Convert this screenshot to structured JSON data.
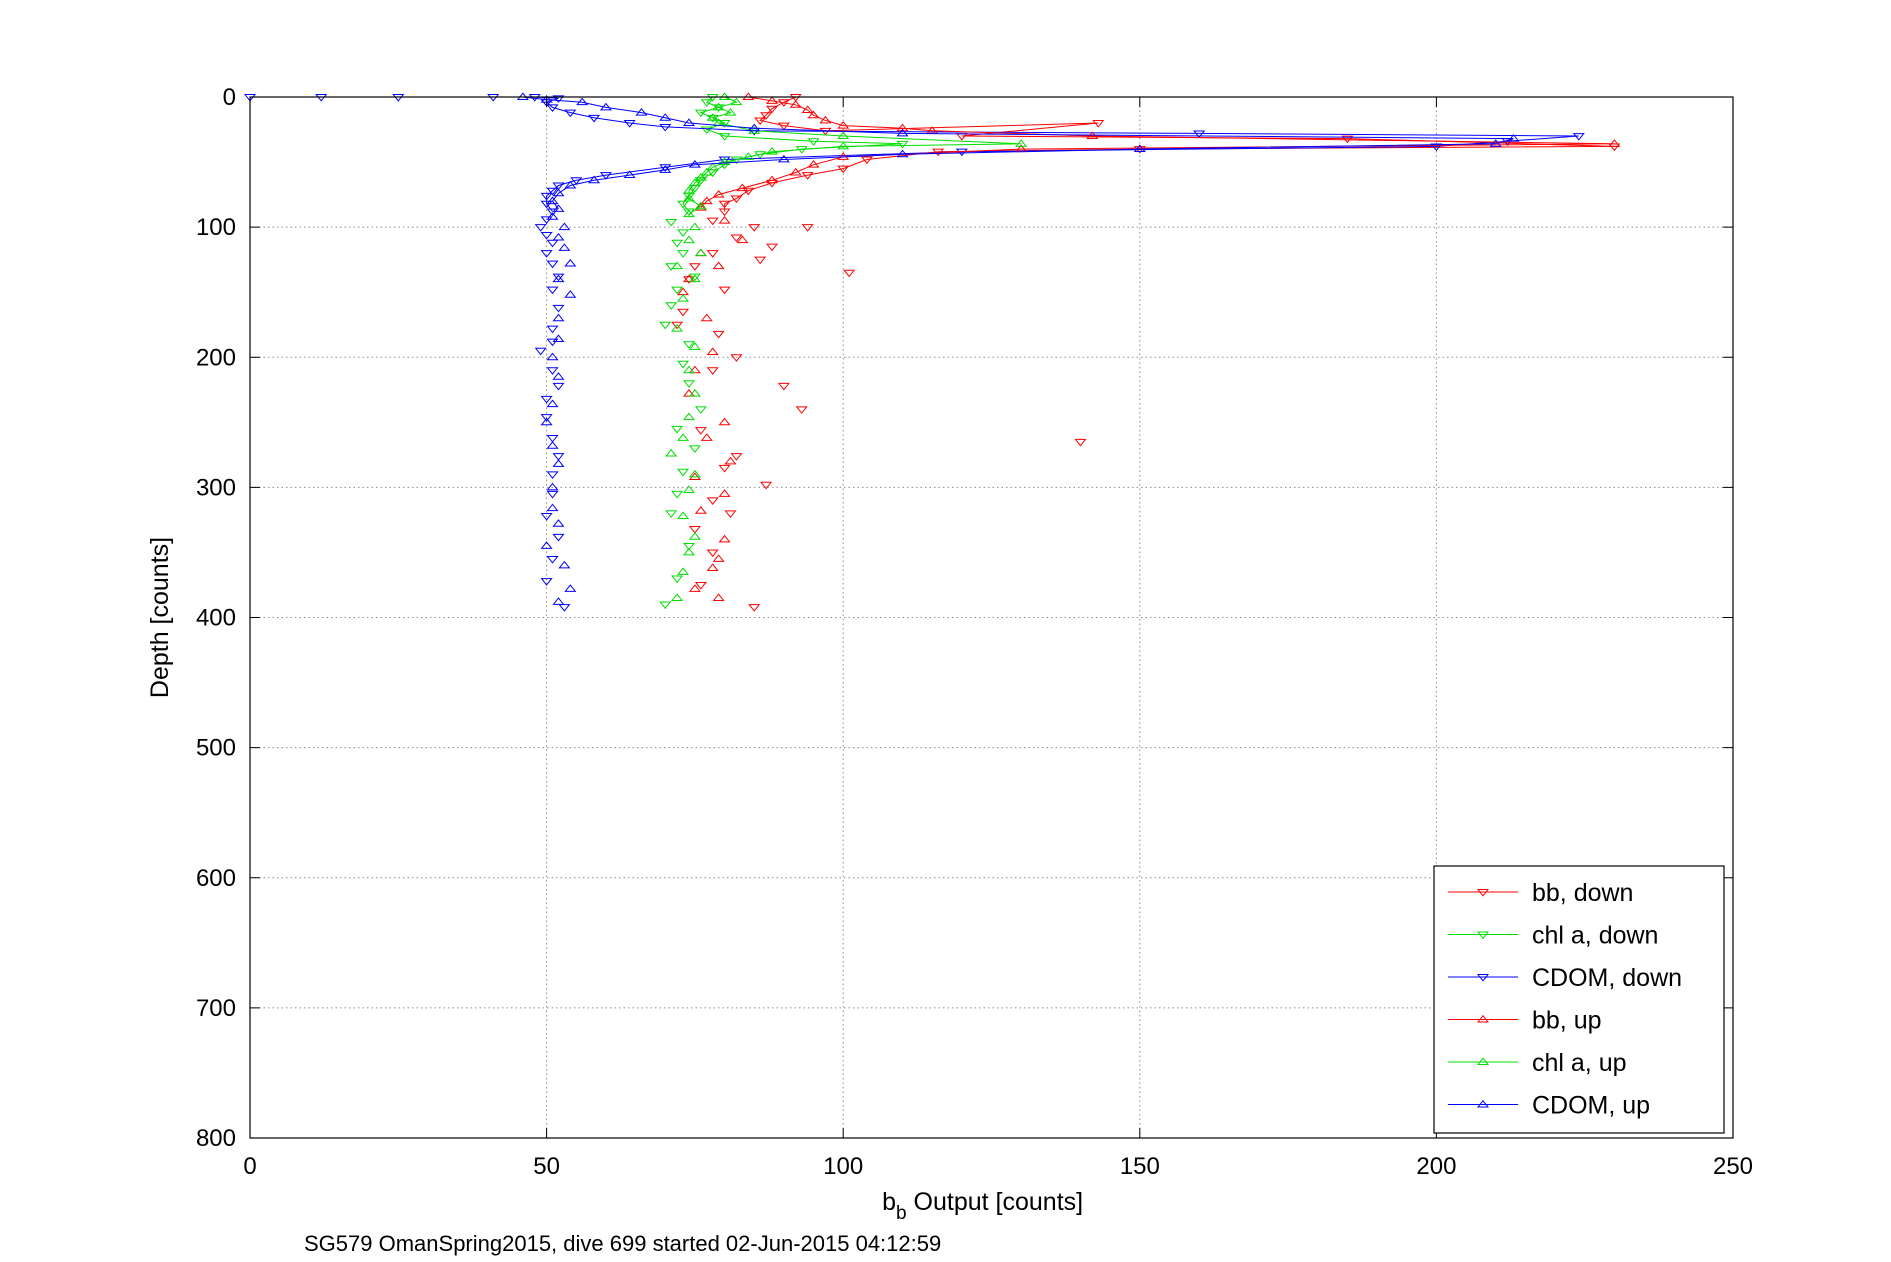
{
  "chart_data": {
    "type": "scatter",
    "title": "",
    "xlabel_main": "b",
    "xlabel_sub": "b",
    "xlabel_rest": " Output [counts]",
    "ylabel": "Depth [counts]",
    "caption": "SG579 OmanSpring2015, dive 699 started 02-Jun-2015 04:12:59",
    "xlim": [
      0,
      250
    ],
    "ylim": [
      0,
      800
    ],
    "y_reversed": true,
    "grid": true,
    "legend_position": "bottom-right",
    "x_ticks": [
      "0",
      "50",
      "100",
      "150",
      "200",
      "250"
    ],
    "y_ticks": [
      "0",
      "100",
      "200",
      "300",
      "400",
      "500",
      "600",
      "700",
      "800"
    ],
    "series": [
      {
        "name": "bb, down",
        "color": "#ff0000",
        "marker": "triangle-down",
        "points": [
          [
            92,
            0
          ],
          [
            90,
            4
          ],
          [
            88,
            9
          ],
          [
            87,
            14
          ],
          [
            86,
            18
          ],
          [
            90,
            22
          ],
          [
            97,
            26
          ],
          [
            143,
            20
          ],
          [
            120,
            30
          ],
          [
            185,
            32
          ],
          [
            230,
            38
          ],
          [
            150,
            40
          ],
          [
            116,
            42
          ],
          [
            104,
            48
          ],
          [
            100,
            55
          ],
          [
            94,
            60
          ],
          [
            88,
            66
          ],
          [
            84,
            72
          ],
          [
            82,
            78
          ],
          [
            80,
            82
          ],
          [
            80,
            88
          ],
          [
            78,
            95
          ],
          [
            85,
            100
          ],
          [
            94,
            100
          ],
          [
            82,
            108
          ],
          [
            88,
            115
          ],
          [
            78,
            120
          ],
          [
            86,
            125
          ],
          [
            75,
            130
          ],
          [
            101,
            135
          ],
          [
            74,
            140
          ],
          [
            80,
            148
          ],
          [
            73,
            165
          ],
          [
            72,
            175
          ],
          [
            79,
            182
          ],
          [
            82,
            200
          ],
          [
            78,
            210
          ],
          [
            90,
            222
          ],
          [
            93,
            240
          ],
          [
            76,
            256
          ],
          [
            140,
            265
          ],
          [
            82,
            276
          ],
          [
            80,
            285
          ],
          [
            87,
            298
          ],
          [
            78,
            310
          ],
          [
            81,
            320
          ],
          [
            75,
            332
          ],
          [
            78,
            350
          ],
          [
            76,
            375
          ],
          [
            85,
            392
          ]
        ]
      },
      {
        "name": "chl a, down",
        "color": "#00dd00",
        "marker": "triangle-down",
        "points": [
          [
            78,
            0
          ],
          [
            77,
            4
          ],
          [
            79,
            8
          ],
          [
            76,
            12
          ],
          [
            78,
            16
          ],
          [
            80,
            20
          ],
          [
            77,
            25
          ],
          [
            80,
            30
          ],
          [
            95,
            34
          ],
          [
            110,
            36
          ],
          [
            93,
            40
          ],
          [
            86,
            44
          ],
          [
            82,
            48
          ],
          [
            80,
            52
          ],
          [
            78,
            58
          ],
          [
            76,
            64
          ],
          [
            75,
            70
          ],
          [
            74,
            76
          ],
          [
            73,
            82
          ],
          [
            74,
            88
          ],
          [
            71,
            96
          ],
          [
            73,
            104
          ],
          [
            72,
            112
          ],
          [
            73,
            120
          ],
          [
            71,
            130
          ],
          [
            75,
            138
          ],
          [
            72,
            148
          ],
          [
            71,
            160
          ],
          [
            70,
            175
          ],
          [
            74,
            190
          ],
          [
            73,
            205
          ],
          [
            74,
            220
          ],
          [
            76,
            240
          ],
          [
            72,
            255
          ],
          [
            75,
            270
          ],
          [
            73,
            288
          ],
          [
            72,
            305
          ],
          [
            71,
            320
          ],
          [
            74,
            345
          ],
          [
            72,
            370
          ],
          [
            70,
            390
          ]
        ]
      },
      {
        "name": "CDOM, down",
        "color": "#0000ff",
        "marker": "triangle-down",
        "points": [
          [
            0,
            0
          ],
          [
            12,
            0
          ],
          [
            25,
            0
          ],
          [
            41,
            0
          ],
          [
            48,
            0
          ],
          [
            52,
            1
          ],
          [
            50,
            4
          ],
          [
            51,
            8
          ],
          [
            54,
            12
          ],
          [
            58,
            16
          ],
          [
            64,
            20
          ],
          [
            70,
            23
          ],
          [
            85,
            26
          ],
          [
            160,
            28
          ],
          [
            224,
            30
          ],
          [
            212,
            34
          ],
          [
            200,
            38
          ],
          [
            120,
            42
          ],
          [
            80,
            48
          ],
          [
            70,
            54
          ],
          [
            60,
            60
          ],
          [
            55,
            64
          ],
          [
            52,
            68
          ],
          [
            51,
            72
          ],
          [
            50,
            76
          ],
          [
            50,
            82
          ],
          [
            51,
            88
          ],
          [
            50,
            94
          ],
          [
            49,
            100
          ],
          [
            50,
            106
          ],
          [
            51,
            112
          ],
          [
            50,
            120
          ],
          [
            51,
            128
          ],
          [
            52,
            138
          ],
          [
            51,
            148
          ],
          [
            52,
            162
          ],
          [
            51,
            178
          ],
          [
            51,
            188
          ],
          [
            49,
            195
          ],
          [
            51,
            210
          ],
          [
            52,
            222
          ],
          [
            50,
            232
          ],
          [
            50,
            246
          ],
          [
            51,
            262
          ],
          [
            52,
            276
          ],
          [
            51,
            290
          ],
          [
            51,
            305
          ],
          [
            50,
            322
          ],
          [
            52,
            338
          ],
          [
            51,
            355
          ],
          [
            50,
            372
          ],
          [
            53,
            392
          ]
        ]
      },
      {
        "name": "bb, up",
        "color": "#ff0000",
        "marker": "triangle-up",
        "points": [
          [
            84,
            0
          ],
          [
            88,
            3
          ],
          [
            92,
            6
          ],
          [
            94,
            10
          ],
          [
            95,
            14
          ],
          [
            97,
            18
          ],
          [
            100,
            22
          ],
          [
            110,
            24
          ],
          [
            115,
            26
          ],
          [
            142,
            30
          ],
          [
            230,
            36
          ],
          [
            130,
            40
          ],
          [
            100,
            46
          ],
          [
            95,
            52
          ],
          [
            92,
            58
          ],
          [
            88,
            64
          ],
          [
            83,
            70
          ],
          [
            79,
            75
          ],
          [
            77,
            80
          ],
          [
            76,
            85
          ],
          [
            80,
            95
          ],
          [
            83,
            110
          ],
          [
            76,
            120
          ],
          [
            79,
            130
          ],
          [
            74,
            140
          ],
          [
            73,
            150
          ],
          [
            77,
            170
          ],
          [
            78,
            196
          ],
          [
            75,
            210
          ],
          [
            74,
            228
          ],
          [
            80,
            250
          ],
          [
            77,
            262
          ],
          [
            81,
            280
          ],
          [
            75,
            292
          ],
          [
            80,
            305
          ],
          [
            76,
            318
          ],
          [
            80,
            340
          ],
          [
            79,
            355
          ],
          [
            78,
            362
          ],
          [
            75,
            378
          ],
          [
            79,
            385
          ]
        ]
      },
      {
        "name": "chl a, up",
        "color": "#00dd00",
        "marker": "triangle-up",
        "points": [
          [
            80,
            0
          ],
          [
            82,
            4
          ],
          [
            79,
            8
          ],
          [
            81,
            12
          ],
          [
            78,
            16
          ],
          [
            79,
            20
          ],
          [
            85,
            26
          ],
          [
            100,
            30
          ],
          [
            130,
            36
          ],
          [
            100,
            38
          ],
          [
            88,
            42
          ],
          [
            84,
            46
          ],
          [
            80,
            50
          ],
          [
            78,
            54
          ],
          [
            77,
            58
          ],
          [
            76,
            62
          ],
          [
            75,
            66
          ],
          [
            74,
            72
          ],
          [
            74,
            78
          ],
          [
            76,
            84
          ],
          [
            74,
            90
          ],
          [
            75,
            100
          ],
          [
            74,
            110
          ],
          [
            76,
            120
          ],
          [
            72,
            130
          ],
          [
            75,
            140
          ],
          [
            73,
            155
          ],
          [
            72,
            178
          ],
          [
            75,
            192
          ],
          [
            74,
            210
          ],
          [
            75,
            228
          ],
          [
            74,
            246
          ],
          [
            73,
            262
          ],
          [
            71,
            274
          ],
          [
            75,
            290
          ],
          [
            74,
            302
          ],
          [
            73,
            322
          ],
          [
            75,
            338
          ],
          [
            74,
            350
          ],
          [
            73,
            365
          ],
          [
            72,
            385
          ]
        ]
      },
      {
        "name": "CDOM, up",
        "color": "#0000ff",
        "marker": "triangle-up",
        "points": [
          [
            46,
            0
          ],
          [
            50,
            2
          ],
          [
            56,
            4
          ],
          [
            60,
            8
          ],
          [
            66,
            12
          ],
          [
            70,
            16
          ],
          [
            74,
            20
          ],
          [
            85,
            24
          ],
          [
            110,
            28
          ],
          [
            213,
            32
          ],
          [
            210,
            36
          ],
          [
            150,
            40
          ],
          [
            110,
            44
          ],
          [
            90,
            48
          ],
          [
            75,
            52
          ],
          [
            70,
            56
          ],
          [
            64,
            60
          ],
          [
            58,
            64
          ],
          [
            54,
            68
          ],
          [
            52,
            74
          ],
          [
            51,
            80
          ],
          [
            52,
            86
          ],
          [
            51,
            92
          ],
          [
            53,
            100
          ],
          [
            52,
            108
          ],
          [
            53,
            116
          ],
          [
            54,
            128
          ],
          [
            52,
            140
          ],
          [
            54,
            152
          ],
          [
            52,
            170
          ],
          [
            52,
            186
          ],
          [
            51,
            200
          ],
          [
            52,
            215
          ],
          [
            51,
            236
          ],
          [
            50,
            250
          ],
          [
            51,
            268
          ],
          [
            52,
            282
          ],
          [
            51,
            300
          ],
          [
            51,
            316
          ],
          [
            52,
            328
          ],
          [
            50,
            345
          ],
          [
            53,
            360
          ],
          [
            54,
            378
          ],
          [
            52,
            388
          ]
        ]
      }
    ]
  }
}
